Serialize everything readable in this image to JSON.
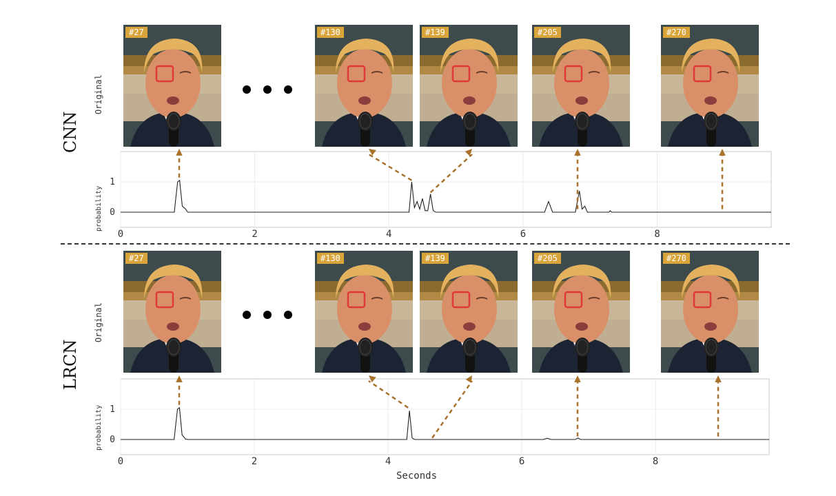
{
  "panels": [
    {
      "id": "cnn",
      "label": "CNN",
      "row_label": "Original",
      "ylabel": "probability",
      "frames": [
        "#27",
        "#130",
        "#139",
        "#205",
        "#270"
      ]
    },
    {
      "id": "lrcn",
      "label": "LRCN",
      "row_label": "Original",
      "ylabel": "probability",
      "frames": [
        "#27",
        "#130",
        "#139",
        "#205",
        "#270"
      ]
    }
  ],
  "xlabel": "Seconds",
  "colors": {
    "arrow": "#a8722a",
    "trace": "#222222",
    "tag": "#d9a43a",
    "eye_box": "#e0393a"
  },
  "chart_data": [
    {
      "type": "line",
      "title": "",
      "xlabel": "",
      "ylabel": "probability",
      "xlim": [
        0,
        9.7
      ],
      "ylim": [
        -0.5,
        2
      ],
      "xticks": [
        0,
        2,
        4,
        6,
        8
      ],
      "yticks": [
        0,
        1
      ],
      "grid": true,
      "series": [
        {
          "x": [
            0,
            0.8,
            0.85,
            0.88,
            0.92,
            0.97,
            1.0,
            4.3,
            4.34,
            4.38,
            4.42,
            4.46,
            4.5,
            4.54,
            4.58,
            4.62,
            4.66,
            4.7,
            6.32,
            6.38,
            6.44,
            6.78,
            6.84,
            6.88,
            6.92,
            6.96,
            7.28,
            7.3,
            7.32,
            9.7
          ],
          "y": [
            0,
            0,
            1.0,
            1.05,
            0.2,
            0.1,
            0,
            0,
            1.0,
            0.15,
            0.35,
            0.1,
            0.45,
            0.05,
            0.05,
            0.6,
            0.05,
            0,
            0,
            0.35,
            0,
            0,
            0.7,
            0.1,
            0.2,
            0,
            0,
            0.05,
            0,
            0
          ]
        }
      ],
      "arrows_to_frames": [
        "#27",
        "#130",
        "#139",
        "#205",
        "#270"
      ]
    },
    {
      "type": "line",
      "title": "",
      "xlabel": "Seconds",
      "ylabel": "probability",
      "xlim": [
        0,
        9.7
      ],
      "ylim": [
        -0.5,
        2
      ],
      "xticks": [
        0,
        2,
        4,
        6,
        8
      ],
      "yticks": [
        0,
        1
      ],
      "grid": true,
      "series": [
        {
          "x": [
            0,
            0.8,
            0.85,
            0.88,
            0.92,
            0.97,
            1.0,
            4.28,
            4.32,
            4.36,
            4.4,
            6.32,
            6.38,
            6.44,
            6.8,
            6.84,
            6.88,
            9.7
          ],
          "y": [
            0,
            0,
            1.0,
            1.05,
            0.15,
            0.02,
            0,
            0,
            0.95,
            0.05,
            0,
            0,
            0.04,
            0,
            0,
            0.05,
            0,
            0
          ]
        }
      ],
      "arrows_to_frames": [
        "#27",
        "#130",
        "#139",
        "#205",
        "#270"
      ]
    }
  ]
}
